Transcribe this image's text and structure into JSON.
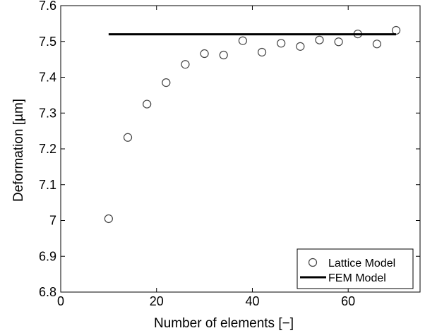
{
  "chart_data": {
    "type": "scatter",
    "title": "",
    "xlabel": "Number of elements [−]",
    "ylabel": "Deformation [µm]",
    "xlim": [
      0,
      75
    ],
    "ylim": [
      6.8,
      7.6
    ],
    "x_ticks": [
      0,
      20,
      40,
      60
    ],
    "x_tick_labels": [
      "0",
      "20",
      "40",
      "60"
    ],
    "y_ticks": [
      6.8,
      6.9,
      7.0,
      7.1,
      7.2,
      7.3,
      7.4,
      7.5,
      7.6
    ],
    "y_tick_labels": [
      "6.8",
      "6.9",
      "7",
      "7.1",
      "7.2",
      "7.3",
      "7.4",
      "7.5",
      "7.6"
    ],
    "grid": false,
    "legend_position": "bottom-right",
    "series": [
      {
        "name": "Lattice Model",
        "kind": "scatter",
        "marker": "open-circle",
        "color": "#444444",
        "x": [
          10,
          14,
          18,
          22,
          26,
          30,
          34,
          38,
          42,
          46,
          50,
          54,
          58,
          62,
          66,
          70
        ],
        "y": [
          7.005,
          7.232,
          7.325,
          7.385,
          7.436,
          7.466,
          7.462,
          7.502,
          7.47,
          7.495,
          7.486,
          7.504,
          7.499,
          7.521,
          7.493,
          7.531
        ]
      },
      {
        "name": "FEM Model",
        "kind": "line",
        "color": "#000000",
        "x": [
          10,
          70
        ],
        "y": [
          7.52,
          7.52
        ]
      }
    ]
  }
}
